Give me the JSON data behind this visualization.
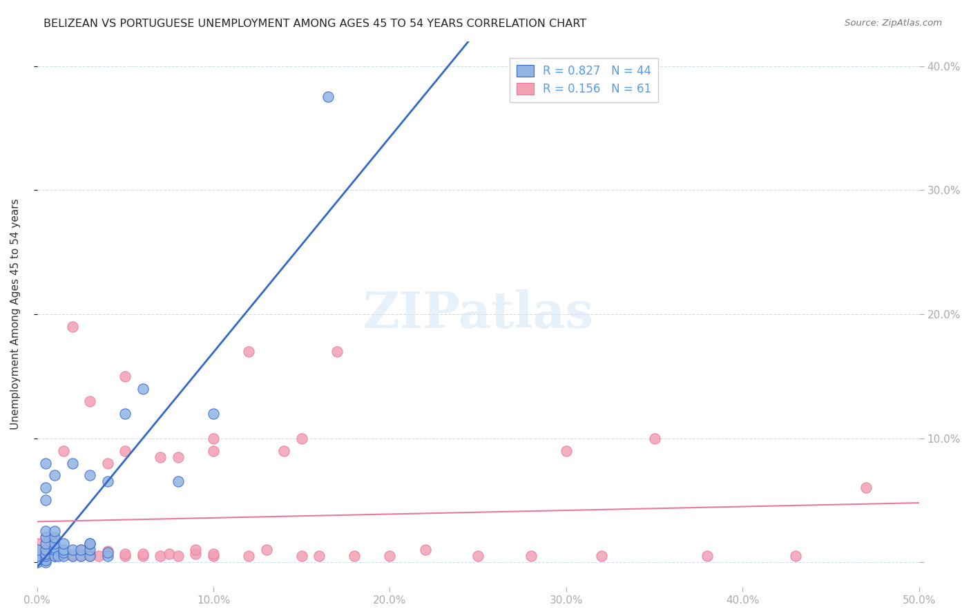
{
  "title": "BELIZEAN VS PORTUGUESE UNEMPLOYMENT AMONG AGES 45 TO 54 YEARS CORRELATION CHART",
  "source": "Source: ZipAtlas.com",
  "ylabel": "Unemployment Among Ages 45 to 54 years",
  "xlabel": "",
  "xlim": [
    0.0,
    0.5
  ],
  "ylim": [
    -0.02,
    0.42
  ],
  "xticks": [
    0.0,
    0.1,
    0.2,
    0.3,
    0.4,
    0.5
  ],
  "yticks": [
    0.0,
    0.1,
    0.2,
    0.3,
    0.4
  ],
  "xticklabels": [
    "0.0%",
    "10.0%",
    "20.0%",
    "30.0%",
    "40.0%",
    "50.0%"
  ],
  "yticklabels_right": [
    "",
    "10.0%",
    "20.0%",
    "30.0%",
    "40.0%"
  ],
  "watermark": "ZIPatlas",
  "belizean_color": "#92b4e3",
  "portuguese_color": "#f4a0b5",
  "belizean_line_color": "#3366cc",
  "portuguese_line_color": "#e87a99",
  "belizean_R": 0.827,
  "belizean_N": 44,
  "portuguese_R": 0.156,
  "portuguese_N": 61,
  "belizean_x": [
    0.0,
    0.0,
    0.0,
    0.005,
    0.005,
    0.005,
    0.005,
    0.005,
    0.005,
    0.005,
    0.005,
    0.005,
    0.005,
    0.005,
    0.01,
    0.01,
    0.01,
    0.01,
    0.01,
    0.01,
    0.01,
    0.012,
    0.015,
    0.015,
    0.015,
    0.015,
    0.02,
    0.02,
    0.02,
    0.025,
    0.025,
    0.03,
    0.03,
    0.03,
    0.03,
    0.03,
    0.04,
    0.04,
    0.04,
    0.05,
    0.06,
    0.08,
    0.1,
    0.165
  ],
  "belizean_y": [
    0.0,
    0.005,
    0.01,
    0.0,
    0.002,
    0.005,
    0.007,
    0.01,
    0.015,
    0.02,
    0.025,
    0.05,
    0.06,
    0.08,
    0.005,
    0.01,
    0.012,
    0.015,
    0.02,
    0.025,
    0.07,
    0.005,
    0.005,
    0.008,
    0.01,
    0.015,
    0.005,
    0.01,
    0.08,
    0.005,
    0.01,
    0.005,
    0.01,
    0.015,
    0.015,
    0.07,
    0.005,
    0.008,
    0.065,
    0.12,
    0.14,
    0.065,
    0.12,
    0.375
  ],
  "portuguese_x": [
    0.0,
    0.0,
    0.0,
    0.005,
    0.005,
    0.005,
    0.005,
    0.01,
    0.01,
    0.01,
    0.01,
    0.015,
    0.015,
    0.02,
    0.02,
    0.02,
    0.025,
    0.025,
    0.025,
    0.03,
    0.03,
    0.03,
    0.035,
    0.04,
    0.04,
    0.05,
    0.05,
    0.05,
    0.05,
    0.06,
    0.06,
    0.07,
    0.07,
    0.075,
    0.08,
    0.08,
    0.09,
    0.09,
    0.1,
    0.1,
    0.1,
    0.1,
    0.12,
    0.12,
    0.13,
    0.14,
    0.15,
    0.15,
    0.16,
    0.17,
    0.18,
    0.2,
    0.22,
    0.25,
    0.28,
    0.3,
    0.32,
    0.35,
    0.38,
    0.43,
    0.47
  ],
  "portuguese_y": [
    0.005,
    0.01,
    0.015,
    0.005,
    0.007,
    0.01,
    0.02,
    0.005,
    0.007,
    0.01,
    0.018,
    0.007,
    0.09,
    0.005,
    0.007,
    0.19,
    0.005,
    0.007,
    0.01,
    0.005,
    0.007,
    0.13,
    0.005,
    0.009,
    0.08,
    0.005,
    0.007,
    0.09,
    0.15,
    0.005,
    0.007,
    0.005,
    0.085,
    0.007,
    0.005,
    0.085,
    0.007,
    0.01,
    0.005,
    0.007,
    0.09,
    0.1,
    0.005,
    0.17,
    0.01,
    0.09,
    0.005,
    0.1,
    0.005,
    0.17,
    0.005,
    0.005,
    0.01,
    0.005,
    0.005,
    0.09,
    0.005,
    0.1,
    0.005,
    0.005,
    0.06
  ]
}
